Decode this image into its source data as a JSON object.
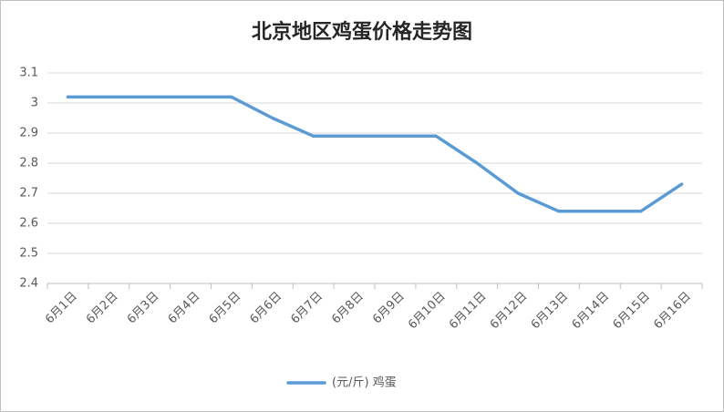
{
  "chart_data": {
    "type": "line",
    "title": "北京地区鸡蛋价格走势图",
    "categories": [
      "6月1日",
      "6月2日",
      "6月3日",
      "6月4日",
      "6月5日",
      "6月6日",
      "6月7日",
      "6月8日",
      "6月9日",
      "6月10日",
      "6月11日",
      "6月12日",
      "6月13日",
      "6月14日",
      "6月15日",
      "6月16日"
    ],
    "series": [
      {
        "name": "(元/斤) 鸡蛋",
        "color": "#5b9bd5",
        "values": [
          3.02,
          3.02,
          3.02,
          3.02,
          3.02,
          2.95,
          2.89,
          2.89,
          2.89,
          2.89,
          2.8,
          2.7,
          2.64,
          2.64,
          2.64,
          2.73
        ]
      }
    ],
    "ylim": [
      2.4,
      3.1
    ],
    "yticks": [
      2.4,
      2.5,
      2.6,
      2.7,
      2.8,
      2.9,
      3,
      3.1
    ],
    "grid": true,
    "legend": "bottom"
  }
}
